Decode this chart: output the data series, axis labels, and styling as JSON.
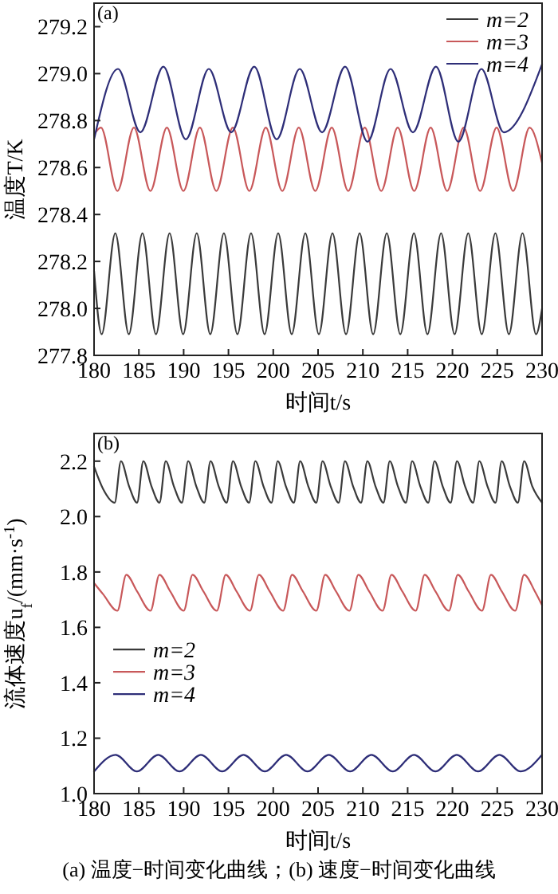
{
  "chart_data": [
    {
      "type": "line",
      "xlabel": "时间t/s",
      "ylabel": "温度T/K",
      "xlim": [
        180,
        230
      ],
      "xticks": [
        180,
        185,
        190,
        195,
        200,
        205,
        210,
        215,
        220,
        225,
        230
      ],
      "ylim": [
        277.8,
        279.3
      ],
      "yticks": [
        277.8,
        {
          "value": 278,
          "label": "278.0"
        },
        278.2,
        278.4,
        278.6,
        278.8,
        {
          "value": 279,
          "label": "279.0"
        },
        279.2
      ],
      "legend": "top right",
      "annotations": [
        "(a)"
      ],
      "series": [
        {
          "name": "m=2",
          "color": "#3a3a3a",
          "x": [
            180,
            180.85,
            182.37,
            183.88,
            185.4,
            186.91,
            188.43,
            189.94,
            191.46,
            192.97,
            194.49,
            196,
            197.52,
            199.03,
            200.55,
            202.06,
            203.58,
            205.09,
            206.61,
            208.12,
            209.64,
            211.15,
            212.67,
            214.18,
            215.7,
            217.21,
            218.73,
            220.24,
            221.76,
            223.27,
            224.79,
            226.3,
            227.82,
            229.33,
            230
          ],
          "values": [
            278.16,
            277.89,
            278.32,
            277.89,
            278.32,
            277.89,
            278.32,
            277.89,
            278.32,
            277.89,
            278.32,
            277.89,
            278.32,
            277.89,
            278.32,
            277.89,
            278.32,
            277.89,
            278.32,
            277.89,
            278.32,
            277.89,
            278.32,
            277.89,
            278.32,
            277.89,
            278.32,
            277.89,
            278.32,
            277.89,
            278.32,
            277.89,
            278.32,
            277.89,
            278
          ]
        },
        {
          "name": "m=3",
          "color": "#c8585a",
          "x": [
            180,
            180.77,
            182.61,
            184.45,
            186.29,
            188.13,
            189.97,
            191.81,
            193.65,
            195.49,
            197.33,
            199.17,
            201.01,
            202.85,
            204.69,
            206.53,
            208.37,
            210.21,
            212.05,
            213.89,
            215.73,
            217.57,
            219.41,
            221.25,
            223.09,
            224.93,
            226.77,
            228.61,
            230
          ],
          "values": [
            278.74,
            278.77,
            278.5,
            278.77,
            278.5,
            278.77,
            278.5,
            278.77,
            278.5,
            278.77,
            278.5,
            278.77,
            278.5,
            278.77,
            278.5,
            278.77,
            278.5,
            278.77,
            278.5,
            278.77,
            278.5,
            278.77,
            278.5,
            278.77,
            278.5,
            278.77,
            278.5,
            278.77,
            278.62
          ]
        },
        {
          "name": "m=4",
          "color": "#2e2e78",
          "x": [
            180,
            182.67,
            185.17,
            187.74,
            190.24,
            192.81,
            195.31,
            197.88,
            200.38,
            202.95,
            205.45,
            208.02,
            210.52,
            213.09,
            215.59,
            218.16,
            220.66,
            223.23,
            225.73,
            230
          ],
          "values": [
            278.72,
            279.02,
            278.75,
            279.03,
            278.72,
            279.02,
            278.75,
            279.03,
            278.72,
            279.02,
            278.75,
            279.03,
            278.71,
            279.02,
            278.75,
            279.03,
            278.71,
            279.02,
            278.75,
            279.04
          ]
        }
      ]
    },
    {
      "type": "line",
      "xlabel": "时间t/s",
      "ylabel": "流体速度u$_{f}$/(mm·s$^{-1}$)",
      "xlim": [
        180,
        230
      ],
      "xticks": [
        180,
        185,
        190,
        195,
        200,
        205,
        210,
        215,
        220,
        225,
        230
      ],
      "ylim": [
        1,
        2.3
      ],
      "yticks": [
        {
          "value": 1,
          "label": "1.0"
        },
        1.2,
        1.4,
        1.6,
        1.8,
        {
          "value": 2,
          "label": "2.0"
        },
        2.2
      ],
      "legend": "left",
      "annotations": [
        "(b)",
        "(a) 温度−时间变化曲线；(b) 速度−时间变化曲线"
      ],
      "series": [
        {
          "name": "m=2",
          "color": "#3a3a3a",
          "x": [
            180,
            181,
            182.3,
            183,
            183.9,
            184.8,
            185.5,
            186.4,
            187.3,
            188,
            188.9,
            189.8,
            190.5,
            191.4,
            192.3,
            193,
            193.9,
            194.8,
            195.5,
            196.4,
            197.3,
            198,
            198.9,
            199.8,
            200.5,
            201.4,
            202.3,
            203,
            203.9,
            204.8,
            205.5,
            206.4,
            207.3,
            208,
            208.9,
            209.8,
            210.5,
            211.4,
            212.3,
            213,
            213.9,
            214.8,
            215.5,
            216.4,
            217.3,
            218,
            218.9,
            219.8,
            220.5,
            221.4,
            222.3,
            223,
            223.9,
            224.8,
            225.5,
            226.4,
            227.3,
            228,
            228.9,
            230
          ],
          "values": [
            2.18,
            2.1,
            2.05,
            2.2,
            2.11,
            2.05,
            2.2,
            2.11,
            2.05,
            2.2,
            2.11,
            2.05,
            2.2,
            2.11,
            2.05,
            2.2,
            2.11,
            2.05,
            2.2,
            2.11,
            2.05,
            2.2,
            2.11,
            2.05,
            2.2,
            2.11,
            2.05,
            2.2,
            2.11,
            2.05,
            2.2,
            2.11,
            2.05,
            2.2,
            2.11,
            2.05,
            2.2,
            2.11,
            2.05,
            2.2,
            2.11,
            2.05,
            2.2,
            2.11,
            2.05,
            2.2,
            2.11,
            2.05,
            2.2,
            2.11,
            2.05,
            2.2,
            2.11,
            2.05,
            2.2,
            2.11,
            2.05,
            2.2,
            2.11,
            2.05
          ]
        },
        {
          "name": "m=3",
          "color": "#c8585a",
          "x": [
            180,
            181,
            182.6,
            183.6,
            184.8,
            186.3,
            187.3,
            188.5,
            190,
            191,
            192.2,
            193.7,
            194.7,
            195.9,
            197.4,
            198.4,
            199.6,
            201.1,
            202.1,
            203.3,
            204.8,
            205.8,
            207,
            208.5,
            209.5,
            210.7,
            212.2,
            213.2,
            214.4,
            215.9,
            216.9,
            218.1,
            219.6,
            220.6,
            221.8,
            223.3,
            224.3,
            225.5,
            227,
            228,
            229.2,
            230
          ],
          "values": [
            1.76,
            1.72,
            1.66,
            1.79,
            1.73,
            1.66,
            1.79,
            1.73,
            1.66,
            1.79,
            1.73,
            1.66,
            1.79,
            1.73,
            1.66,
            1.79,
            1.73,
            1.66,
            1.79,
            1.73,
            1.66,
            1.79,
            1.73,
            1.66,
            1.79,
            1.73,
            1.66,
            1.79,
            1.73,
            1.66,
            1.79,
            1.73,
            1.66,
            1.79,
            1.73,
            1.66,
            1.79,
            1.73,
            1.66,
            1.79,
            1.73,
            1.68
          ]
        },
        {
          "name": "m=4",
          "color": "#2e2e78",
          "x": [
            180,
            182.4,
            184.78,
            187.16,
            189.54,
            191.92,
            194.3,
            196.68,
            199.06,
            201.44,
            203.82,
            206.2,
            208.58,
            210.96,
            213.34,
            215.72,
            218.1,
            220.48,
            222.86,
            225.24,
            227.62,
            230
          ],
          "values": [
            1.08,
            1.14,
            1.08,
            1.14,
            1.08,
            1.14,
            1.08,
            1.14,
            1.08,
            1.14,
            1.08,
            1.14,
            1.08,
            1.14,
            1.08,
            1.14,
            1.08,
            1.14,
            1.08,
            1.14,
            1.08,
            1.14
          ]
        }
      ]
    }
  ]
}
